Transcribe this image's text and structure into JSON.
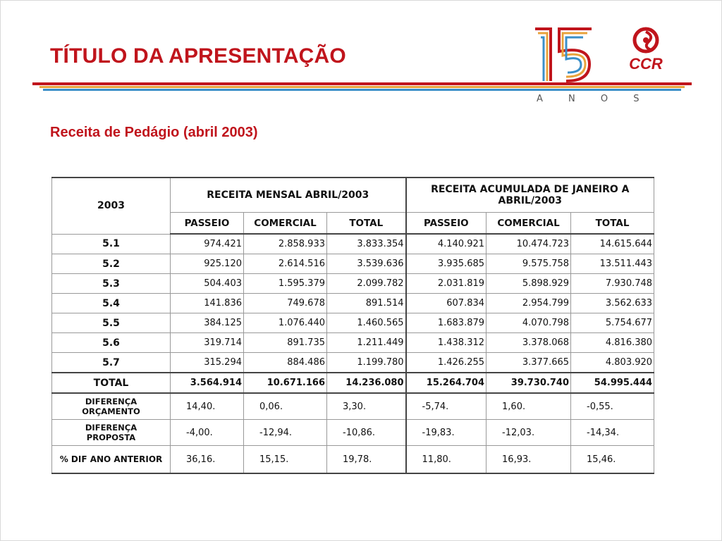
{
  "slide": {
    "title": "TÍTULO DA APRESENTAÇÃO",
    "subtitle": "Receita de Pedágio (abril 2003)"
  },
  "logo": {
    "badge_number": "15",
    "badge_caption": "A N O S",
    "brand_icon": "ccr-swirl-icon",
    "brand_name": "CCR"
  },
  "colors": {
    "title_red": "#c0141c",
    "stripe_red": "#c0141c",
    "stripe_orange": "#e8a33c",
    "stripe_blue": "#3a8fc9"
  },
  "table": {
    "year_label": "2003",
    "group_monthly": "RECEITA MENSAL ABRIL/2003",
    "group_accumulated": "RECEITA ACUMULADA DE JANEIRO A ABRIL/2003",
    "columns": [
      "PASSEIO",
      "COMERCIAL",
      "TOTAL",
      "PASSEIO",
      "COMERCIAL",
      "TOTAL"
    ],
    "rows": [
      {
        "label": "5.1",
        "values": [
          "974.421",
          "2.858.933",
          "3.833.354",
          "4.140.921",
          "10.474.723",
          "14.615.644"
        ]
      },
      {
        "label": "5.2",
        "values": [
          "925.120",
          "2.614.516",
          "3.539.636",
          "3.935.685",
          "9.575.758",
          "13.511.443"
        ]
      },
      {
        "label": "5.3",
        "values": [
          "504.403",
          "1.595.379",
          "2.099.782",
          "2.031.819",
          "5.898.929",
          "7.930.748"
        ]
      },
      {
        "label": "5.4",
        "values": [
          "141.836",
          "749.678",
          "891.514",
          "607.834",
          "2.954.799",
          "3.562.633"
        ]
      },
      {
        "label": "5.5",
        "values": [
          "384.125",
          "1.076.440",
          "1.460.565",
          "1.683.879",
          "4.070.798",
          "5.754.677"
        ]
      },
      {
        "label": "5.6",
        "values": [
          "319.714",
          "891.735",
          "1.211.449",
          "1.438.312",
          "3.378.068",
          "4.816.380"
        ]
      },
      {
        "label": "5.7",
        "values": [
          "315.294",
          "884.486",
          "1.199.780",
          "1.426.255",
          "3.377.665",
          "4.803.920"
        ]
      }
    ],
    "total": {
      "label": "TOTAL",
      "values": [
        "3.564.914",
        "10.671.166",
        "14.236.080",
        "15.264.704",
        "39.730.740",
        "54.995.444"
      ]
    },
    "diff_budget": {
      "label_line1": "DIFERENÇA",
      "label_line2": "ORÇAMENTO",
      "values": [
        "14,40.",
        "0,06.",
        "3,30.",
        "-5,74.",
        "1,60.",
        "-0,55."
      ]
    },
    "diff_proposal": {
      "label_line1": "DIFERENÇA",
      "label_line2": "PROPOSTA",
      "values": [
        "-4,00.",
        "-12,94.",
        "-10,86.",
        "-19,83.",
        "-12,03.",
        "-14,34."
      ]
    },
    "diff_prev_year": {
      "label": "% DIF ANO ANTERIOR",
      "values": [
        "36,16.",
        "15,15.",
        "19,78.",
        "11,80.",
        "16,93.",
        "15,46."
      ]
    }
  }
}
